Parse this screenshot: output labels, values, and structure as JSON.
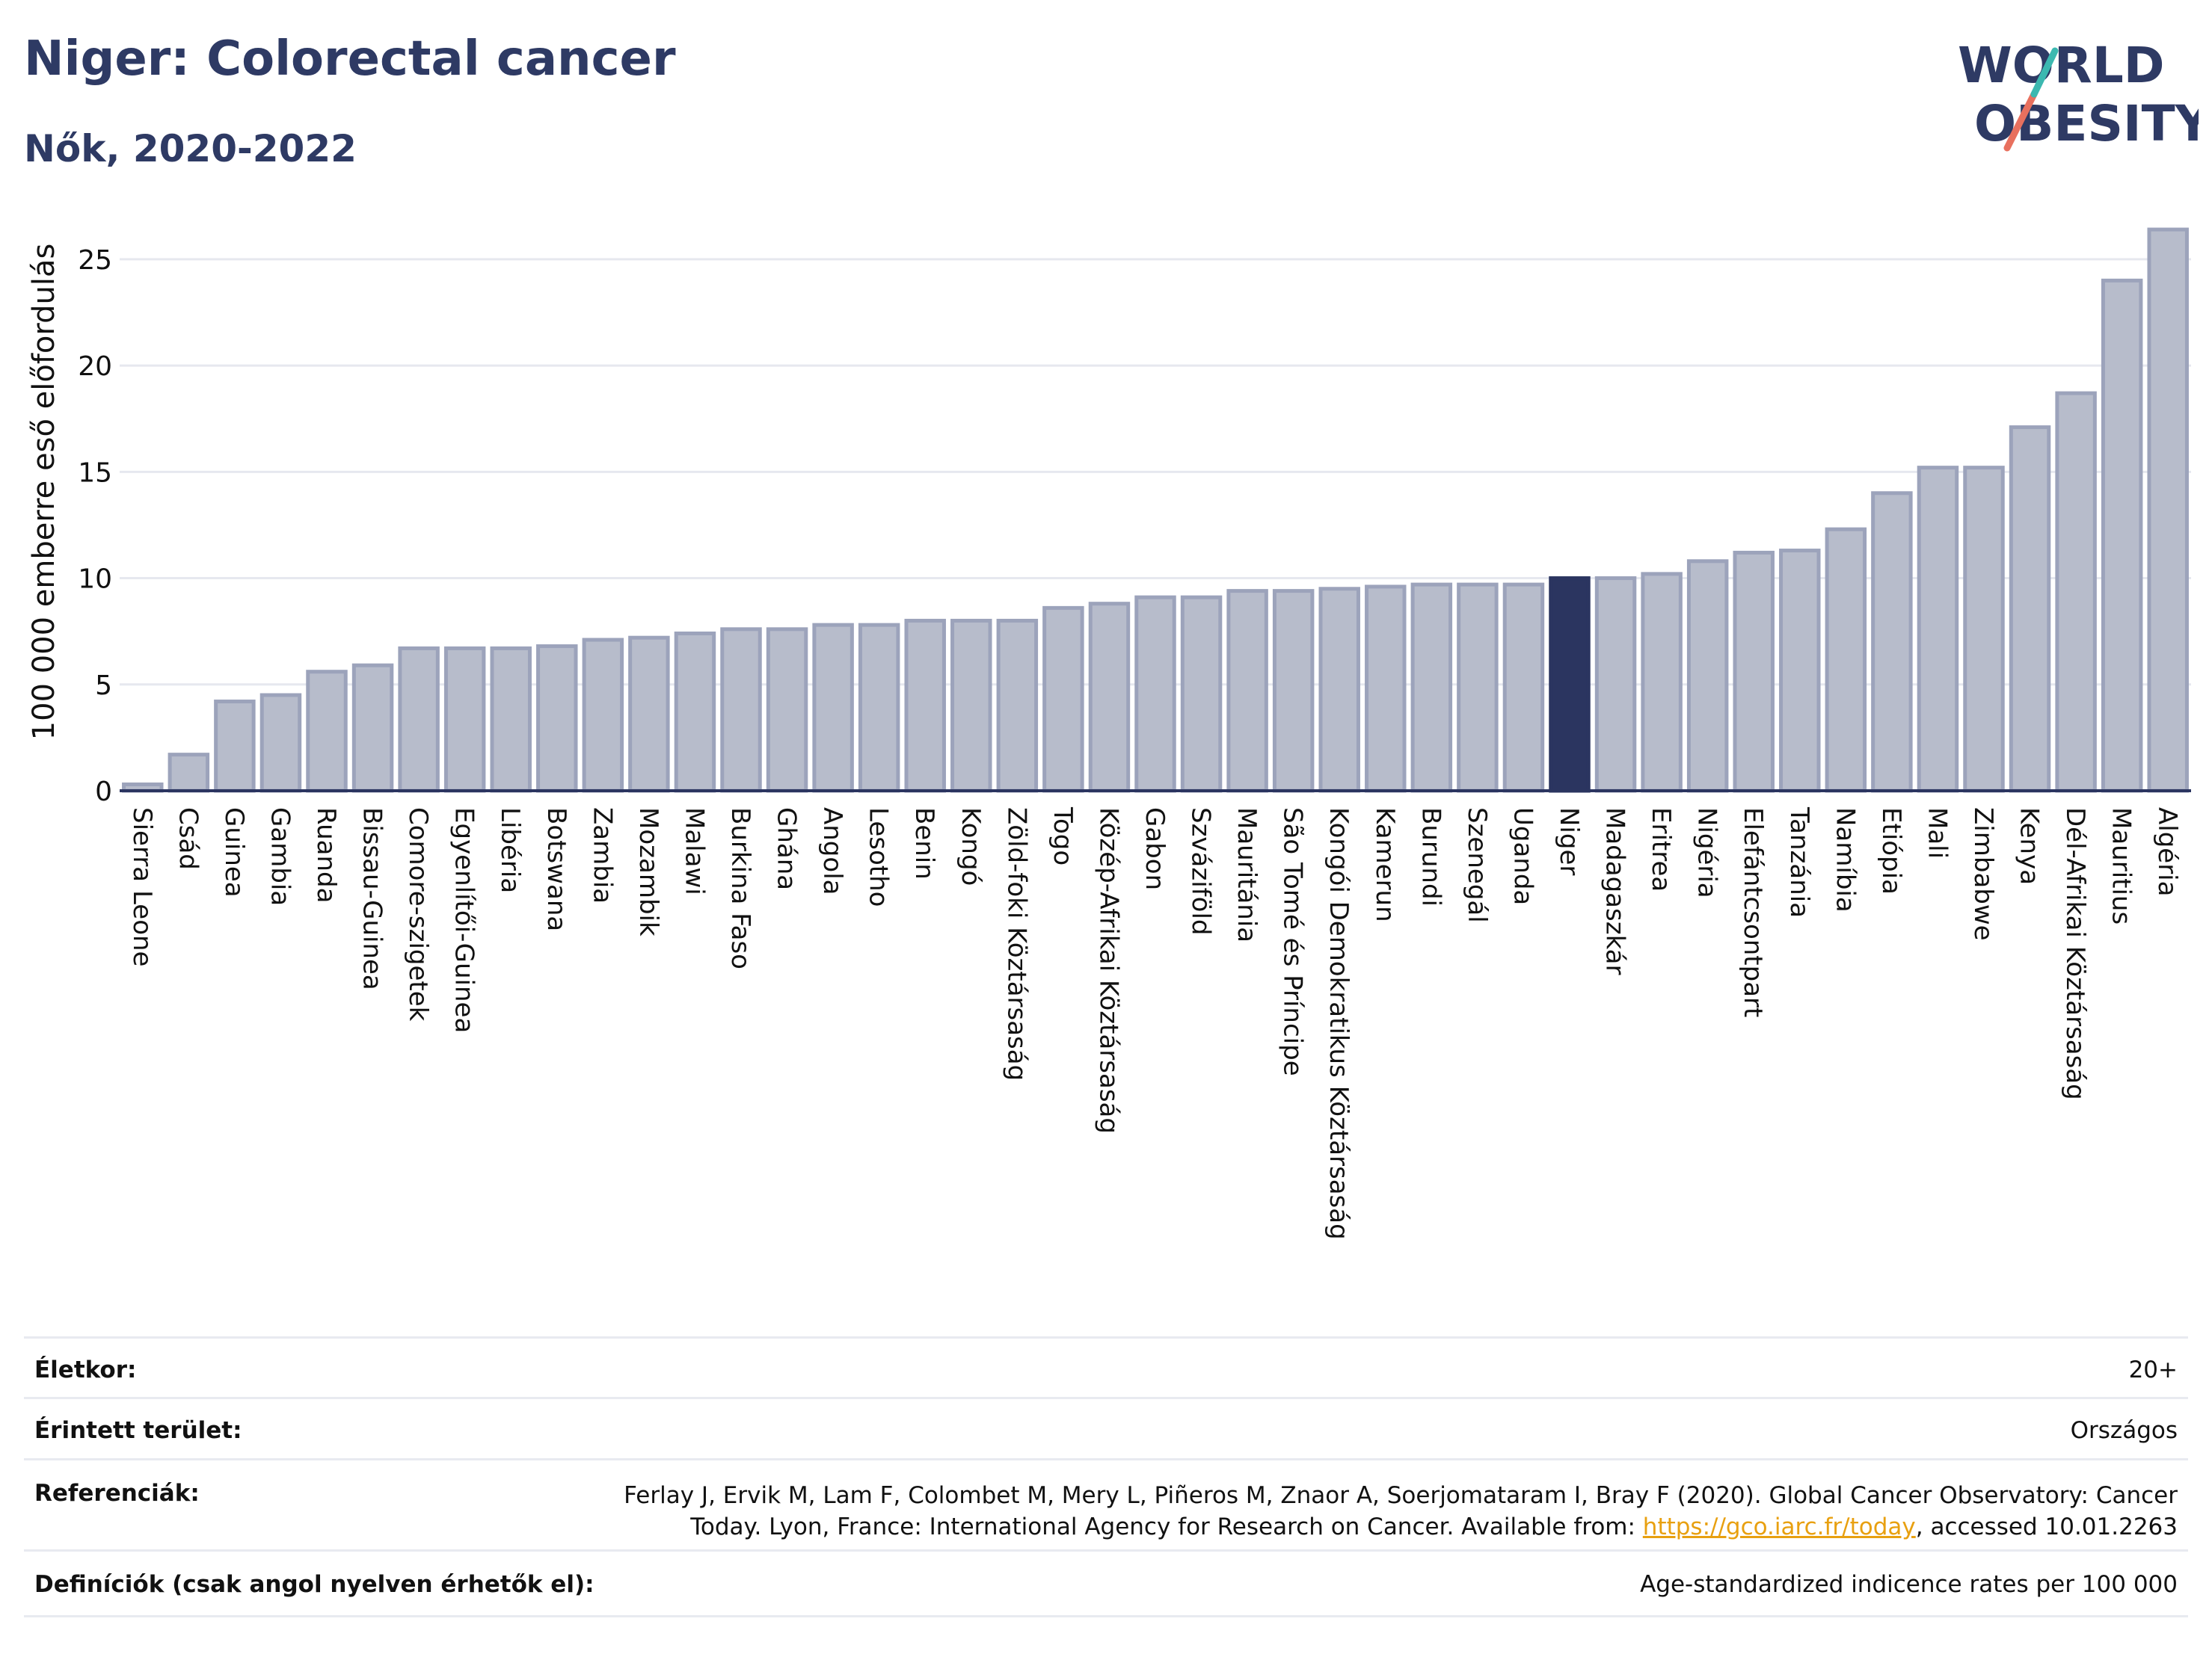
{
  "header": {
    "title": "Niger: Colorectal cancer",
    "subtitle": "Nők, 2020-2022"
  },
  "logo": {
    "line1": "WORLD",
    "line2": "OBESITY"
  },
  "chart_data": {
    "type": "bar",
    "ylabel": "100 000 emberre eső előfordulás",
    "ylim": [
      0,
      27
    ],
    "yticks": [
      0,
      5,
      10,
      15,
      20,
      25
    ],
    "grid": true,
    "highlight": "Niger",
    "colors": {
      "bar": "#b7bccb",
      "bar_stroke": "#9ca3bb",
      "highlight": "#2b3560",
      "axis": "#2b3560",
      "grid": "#e6e8ef"
    },
    "categories": [
      "Sierra Leone",
      "Csád",
      "Guinea",
      "Gambia",
      "Ruanda",
      "Bissau-Guinea",
      "Comore-szigetek",
      "Egyenlítői-Guinea",
      "Libéria",
      "Botswana",
      "Zambia",
      "Mozambik",
      "Malawi",
      "Burkina Faso",
      "Ghána",
      "Angola",
      "Lesotho",
      "Benin",
      "Kongó",
      "Zöld-foki Köztársaság",
      "Togo",
      "Közép-Afrikai Köztársaság",
      "Gabon",
      "Szváziföld",
      "Mauritánia",
      "São Tomé és Príncipe",
      "Kongói Demokratikus Köztársaság",
      "Kamerun",
      "Burundi",
      "Szenegál",
      "Uganda",
      "Niger",
      "Madagaszkár",
      "Eritrea",
      "Nigéria",
      "Elefántcsontpart",
      "Tanzánia",
      "Namíbia",
      "Etiópia",
      "Mali",
      "Zimbabwe",
      "Kenya",
      "Dél-Afrikai Köztársaság",
      "Mauritius",
      "Algéria"
    ],
    "values": [
      0.3,
      1.7,
      4.2,
      4.5,
      5.6,
      5.9,
      6.7,
      6.7,
      6.7,
      6.8,
      7.1,
      7.2,
      7.4,
      7.6,
      7.6,
      7.8,
      7.8,
      8.0,
      8.0,
      8.0,
      8.6,
      8.8,
      9.1,
      9.1,
      9.4,
      9.4,
      9.5,
      9.6,
      9.7,
      9.7,
      9.7,
      10.0,
      10.0,
      10.2,
      10.8,
      11.2,
      11.3,
      12.3,
      14.0,
      15.2,
      15.2,
      17.1,
      18.7,
      24.0,
      26.4
    ]
  },
  "meta": {
    "age_label": "Életkor:",
    "age_value": "20+",
    "area_label": "Érintett terület:",
    "area_value": "Országos",
    "ref_label": "Referenciák:",
    "ref_line1": "Ferlay J, Ervik M, Lam F, Colombet M, Mery L, Piñeros M, Znaor A, Soerjomataram I, Bray F (2020). Global Cancer Observatory: Cancer",
    "ref_line2_pre": "Today. Lyon, France: International Agency for Research on Cancer. Available from: ",
    "ref_link": "https://gco.iarc.fr/today",
    "ref_line2_post": ", accessed 10.01.2263",
    "def_label": "Definíciók (csak angol nyelven érhetők el):",
    "def_value": "Age-standardized indicence rates per 100 000"
  }
}
